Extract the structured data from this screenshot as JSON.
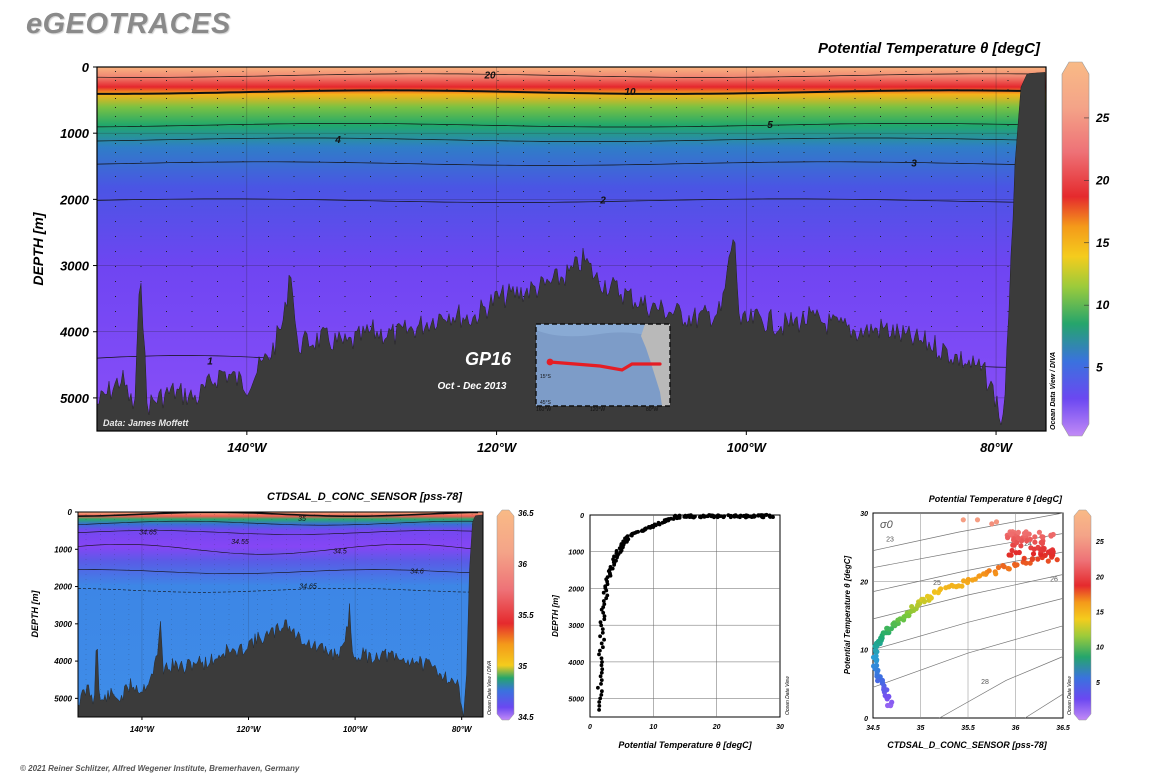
{
  "header": {
    "app_title": "eGEOTRACES"
  },
  "footer": {
    "copyright": "© 2021 Reiner Schlitzer, Alfred Wegener Institute, Bremerhaven, Germany"
  },
  "chart_data": [
    {
      "type": "heatmap",
      "id": "main-section",
      "title": "Potential Temperature θ [degC]",
      "ylabel": "DEPTH [m]",
      "x_ticks": [
        "140°W",
        "120°W",
        "100°W",
        "80°W"
      ],
      "x_tick_values": [
        -140,
        -120,
        -100,
        -80
      ],
      "xlim": [
        -152,
        -76
      ],
      "y_ticks": [
        0,
        1000,
        2000,
        3000,
        4000,
        5000
      ],
      "ylim": [
        0,
        5500
      ],
      "colorbar_ticks": [
        5,
        10,
        15,
        20,
        25
      ],
      "colorbar_range": [
        0,
        29
      ],
      "contours": [
        {
          "label": "20",
          "depth": 130
        },
        {
          "label": "10",
          "depth": 380
        },
        {
          "label": "5",
          "depth": 880
        },
        {
          "label": "4",
          "depth": 1100
        },
        {
          "label": "3",
          "depth": 1460
        },
        {
          "label": "2",
          "depth": 2020
        },
        {
          "label": "1",
          "depth": 4450
        }
      ],
      "side_label": "Ocean Data View / DIVA",
      "data_credit": "Data: James Moffett",
      "annotations": {
        "cruise": "GP16",
        "dates": "Oct - Dec 2013"
      },
      "inset_map": {
        "lat_labels": [
          "15°S",
          "45°S"
        ],
        "lon_labels": [
          "160°W",
          "120°W",
          "80°W"
        ]
      }
    },
    {
      "type": "heatmap",
      "id": "salinity-section",
      "title": "CTDSAL_D_CONC_SENSOR [pss-78]",
      "ylabel": "DEPTH [m]",
      "x_ticks": [
        "140°W",
        "120°W",
        "100°W",
        "80°W"
      ],
      "x_tick_values": [
        -140,
        -120,
        -100,
        -80
      ],
      "xlim": [
        -152,
        -76
      ],
      "y_ticks": [
        0,
        1000,
        2000,
        3000,
        4000,
        5000
      ],
      "ylim": [
        0,
        5500
      ],
      "colorbar_ticks": [
        "34.5",
        "35",
        "35.5",
        "36",
        "36.5"
      ],
      "colorbar_range": [
        34.5,
        36.5
      ],
      "contour_labels": [
        "35",
        "34.65",
        "34.55",
        "34.5",
        "34.6",
        "34.65"
      ],
      "side_label": "Ocean Data View / DIVA"
    },
    {
      "type": "scatter",
      "id": "temp-profile",
      "xlabel": "Potential Temperature θ [degC]",
      "ylabel": "DEPTH [m]",
      "xlim": [
        0,
        30
      ],
      "ylim": [
        0,
        5500
      ],
      "x_ticks": [
        0,
        10,
        20,
        30
      ],
      "y_ticks": [
        0,
        1000,
        2000,
        3000,
        4000,
        5000
      ],
      "profile": [
        [
          28,
          0
        ],
        [
          25,
          15
        ],
        [
          22,
          25
        ],
        [
          18,
          40
        ],
        [
          15,
          55
        ],
        [
          13,
          90
        ],
        [
          12,
          150
        ],
        [
          11,
          230
        ],
        [
          10,
          300
        ],
        [
          9,
          360
        ],
        [
          8,
          430
        ],
        [
          7,
          520
        ],
        [
          6,
          620
        ],
        [
          5.5,
          720
        ],
        [
          5,
          850
        ],
        [
          4.5,
          1000
        ],
        [
          4,
          1200
        ],
        [
          3.5,
          1450
        ],
        [
          3,
          1700
        ],
        [
          2.5,
          2050
        ],
        [
          2.2,
          2500
        ],
        [
          2,
          3000
        ],
        [
          1.8,
          3600
        ],
        [
          1.7,
          4200
        ],
        [
          1.6,
          4800
        ],
        [
          1.5,
          5400
        ]
      ],
      "surface_spread_xrange": [
        13,
        29
      ],
      "side_label": "Ocean Data View"
    },
    {
      "type": "scatter",
      "id": "ts-diagram",
      "title": "Potential Temperature θ [degC]",
      "xlabel": "CTDSAL_D_CONC_SENSOR [pss-78]",
      "ylabel": "Potential Temperature θ [degC]",
      "xlim": [
        34.5,
        36.5
      ],
      "ylim": [
        0,
        30
      ],
      "x_ticks": [
        "34.5",
        "35",
        "35.5",
        "36",
        "36.5"
      ],
      "y_ticks": [
        0,
        10,
        20,
        30
      ],
      "density_label": "σ0",
      "isopycnal_labels": [
        "23",
        "24",
        "25",
        "26",
        "28"
      ],
      "colorbar_ticks": [
        5,
        10,
        15,
        20,
        25
      ],
      "points": [
        [
          34.69,
          1.5
        ],
        [
          34.66,
          3
        ],
        [
          34.6,
          4.5
        ],
        [
          34.56,
          6
        ],
        [
          34.53,
          7.5
        ],
        [
          34.52,
          9
        ],
        [
          34.55,
          10.5
        ],
        [
          34.6,
          12
        ],
        [
          34.66,
          13
        ],
        [
          34.75,
          14
        ],
        [
          34.85,
          15
        ],
        [
          34.95,
          16.5
        ],
        [
          35.05,
          17.5
        ],
        [
          35.2,
          18.5
        ],
        [
          35.4,
          19.5
        ],
        [
          35.6,
          20.5
        ],
        [
          35.8,
          21.5
        ],
        [
          36.0,
          22.5
        ],
        [
          36.2,
          23.3
        ],
        [
          36.45,
          23.5
        ],
        [
          35.9,
          27.5
        ],
        [
          36.0,
          26
        ],
        [
          36.1,
          25.5
        ],
        [
          35.8,
          28.6
        ],
        [
          35.5,
          29
        ]
      ],
      "side_label": "Ocean Data View"
    }
  ]
}
